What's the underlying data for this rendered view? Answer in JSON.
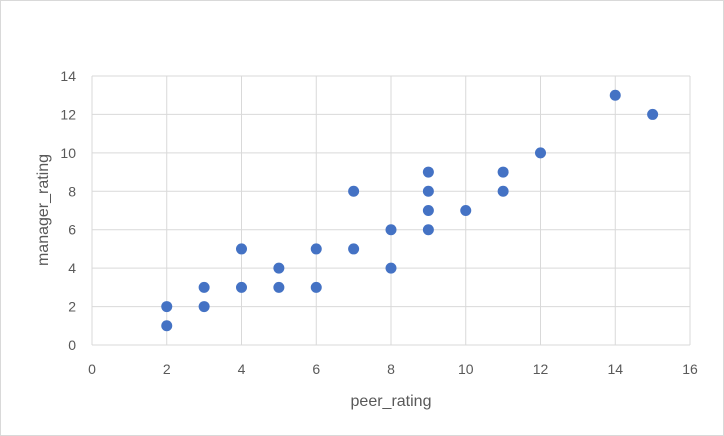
{
  "chart_data": {
    "type": "scatter",
    "title": "",
    "xlabel": "peer_rating",
    "ylabel": "manager_rating",
    "xlim": [
      0,
      16
    ],
    "ylim": [
      0,
      14
    ],
    "x_ticks": [
      0,
      2,
      4,
      6,
      8,
      10,
      12,
      14,
      16
    ],
    "y_ticks": [
      0,
      2,
      4,
      6,
      8,
      10,
      12,
      14
    ],
    "grid": true,
    "legend": "none",
    "marker_color": "#4472C4",
    "points": [
      {
        "x": 2,
        "y": 1
      },
      {
        "x": 2,
        "y": 2
      },
      {
        "x": 3,
        "y": 2
      },
      {
        "x": 3,
        "y": 3
      },
      {
        "x": 4,
        "y": 3
      },
      {
        "x": 4,
        "y": 5
      },
      {
        "x": 5,
        "y": 3
      },
      {
        "x": 5,
        "y": 4
      },
      {
        "x": 6,
        "y": 3
      },
      {
        "x": 6,
        "y": 5
      },
      {
        "x": 7,
        "y": 5
      },
      {
        "x": 7,
        "y": 8
      },
      {
        "x": 8,
        "y": 4
      },
      {
        "x": 8,
        "y": 6
      },
      {
        "x": 9,
        "y": 6
      },
      {
        "x": 9,
        "y": 7
      },
      {
        "x": 9,
        "y": 8
      },
      {
        "x": 9,
        "y": 9
      },
      {
        "x": 10,
        "y": 7
      },
      {
        "x": 11,
        "y": 8
      },
      {
        "x": 11,
        "y": 9
      },
      {
        "x": 12,
        "y": 10
      },
      {
        "x": 14,
        "y": 13
      },
      {
        "x": 15,
        "y": 12
      }
    ]
  }
}
